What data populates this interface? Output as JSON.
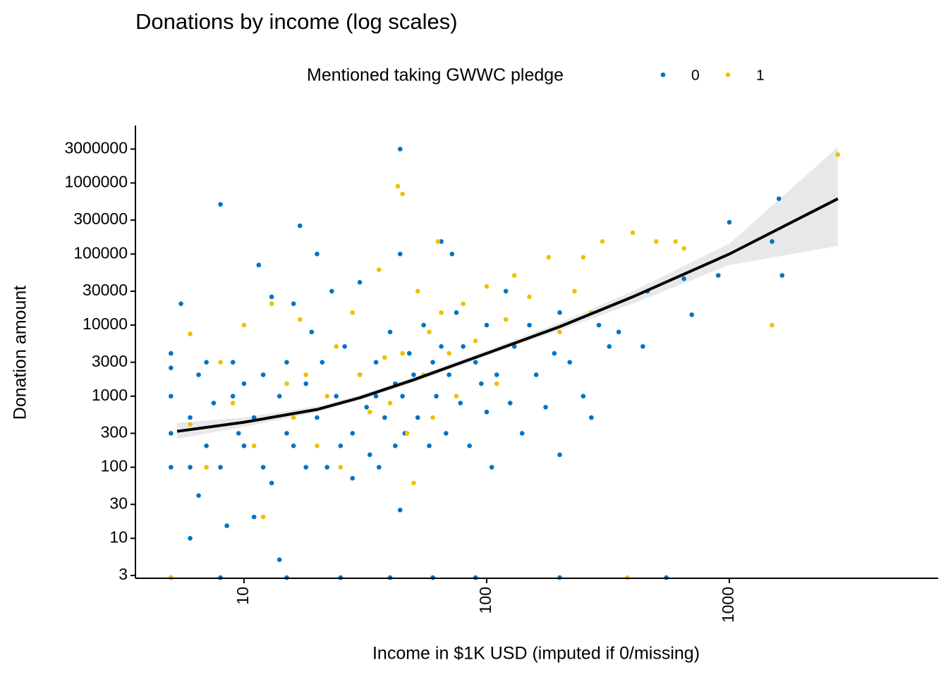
{
  "chart_data": {
    "type": "scatter",
    "title": "Donations by income (log scales)",
    "x_label": "Income in $1K USD (imputed if 0/missing)",
    "y_label": "Donation amount",
    "legend_title": "Mentioned taking GWWC pledge",
    "log_x": true,
    "log_y": true,
    "xlim": [
      3.57,
      7250
    ],
    "ylim": [
      2.74,
      6430000
    ],
    "xticks": [
      10,
      100,
      1000
    ],
    "yticks": [
      3,
      10,
      30,
      100,
      300,
      1000,
      3000,
      10000,
      30000,
      100000,
      300000,
      1000000,
      3000000
    ],
    "series": [
      {
        "name": "0",
        "color": "#0073C2",
        "x": [
          5,
          5,
          5,
          5,
          5,
          5.5,
          6,
          6,
          6,
          6.5,
          6.5,
          7,
          7,
          7.5,
          8,
          8,
          8.5,
          9,
          9,
          9.5,
          10,
          10,
          11,
          11,
          11.5,
          12,
          12,
          13,
          13,
          14,
          14,
          15,
          15,
          16,
          16,
          17,
          18,
          18,
          19,
          20,
          20,
          21,
          22,
          23,
          24,
          25,
          26,
          28,
          28,
          30,
          30,
          32,
          33,
          35,
          35,
          36,
          38,
          40,
          42,
          42,
          44,
          44,
          44,
          45,
          46,
          48,
          50,
          52,
          55,
          58,
          60,
          62,
          65,
          65,
          68,
          70,
          72,
          75,
          78,
          80,
          85,
          90,
          95,
          100,
          100,
          105,
          110,
          120,
          125,
          130,
          140,
          150,
          160,
          175,
          190,
          200,
          200,
          220,
          250,
          270,
          290,
          320,
          350,
          440,
          460,
          650,
          700,
          900,
          1000,
          1500,
          1600,
          1650,
          5,
          8,
          15,
          25,
          40,
          60,
          90,
          200,
          550
        ],
        "values": [
          100,
          300,
          1000,
          2500,
          4000,
          20000,
          10,
          100,
          500,
          40,
          2000,
          200,
          3000,
          800,
          100,
          500000,
          15,
          1000,
          3000,
          300,
          200,
          1500,
          20,
          500,
          70000,
          100,
          2000,
          25000,
          60,
          5,
          1000,
          300,
          3000,
          20000,
          200,
          250000,
          100,
          1500,
          8000,
          100000,
          500,
          3000,
          100,
          30000,
          1000,
          200,
          5000,
          300,
          70,
          2000,
          40000,
          700,
          150,
          1000,
          3000,
          100,
          500,
          8000,
          200,
          1500,
          3000000,
          100000,
          25,
          1000,
          300,
          4000,
          2000,
          500,
          10000,
          200,
          3000,
          1000,
          150000,
          5000,
          300,
          2000,
          100000,
          15000,
          800,
          5000,
          200,
          3000,
          1500,
          10000,
          600,
          100,
          2000,
          30000,
          800,
          5000,
          300,
          10000,
          2000,
          700,
          4000,
          150,
          15000,
          3000,
          1000,
          500,
          10000,
          5000,
          8000,
          5000,
          30000,
          45000,
          14000,
          50000,
          280000,
          150000,
          600000,
          50000,
          2.8,
          2.8,
          2.8,
          2.8,
          2.8,
          2.8,
          2.8,
          2.8,
          2.8
        ]
      },
      {
        "name": "1",
        "color": "#EFC000",
        "x": [
          5,
          6,
          6,
          7,
          8,
          9,
          10,
          11,
          12,
          13,
          15,
          16,
          17,
          18,
          20,
          22,
          24,
          25,
          28,
          30,
          33,
          36,
          38,
          40,
          43,
          45,
          45,
          47,
          50,
          52,
          55,
          58,
          60,
          63,
          65,
          70,
          75,
          80,
          90,
          100,
          110,
          120,
          130,
          150,
          180,
          200,
          230,
          250,
          270,
          300,
          380,
          400,
          500,
          600,
          650,
          1500,
          2800
        ],
        "values": [
          2.8,
          7500,
          400,
          100,
          3000,
          800,
          10000,
          200,
          20,
          20000,
          1500,
          500,
          12000,
          2000,
          200,
          1000,
          5000,
          100,
          15000,
          2000,
          600,
          60000,
          3500,
          800,
          900000,
          700000,
          4000,
          300,
          60,
          30000,
          2000,
          8000,
          500,
          150000,
          15000,
          4000,
          1000,
          20000,
          6000,
          35000,
          1500,
          12000,
          50000,
          25000,
          90000,
          8000,
          30000,
          90000,
          15000,
          150000,
          2.8,
          200000,
          150000,
          150000,
          120000,
          10000,
          2500000
        ]
      }
    ],
    "smooth": {
      "color": "#000000",
      "band_color": "#d9d9d9",
      "x": [
        5.3,
        10,
        20,
        30,
        50,
        100,
        200,
        400,
        1000,
        2800
      ],
      "values": [
        320,
        430,
        650,
        950,
        1700,
        4000,
        9500,
        25000,
        100000,
        600000
      ],
      "lower": [
        250,
        370,
        590,
        880,
        1550,
        3700,
        8500,
        20000,
        70000,
        130000
      ],
      "upper": [
        420,
        500,
        720,
        1030,
        1850,
        4400,
        10800,
        30000,
        140000,
        3200000
      ]
    }
  }
}
